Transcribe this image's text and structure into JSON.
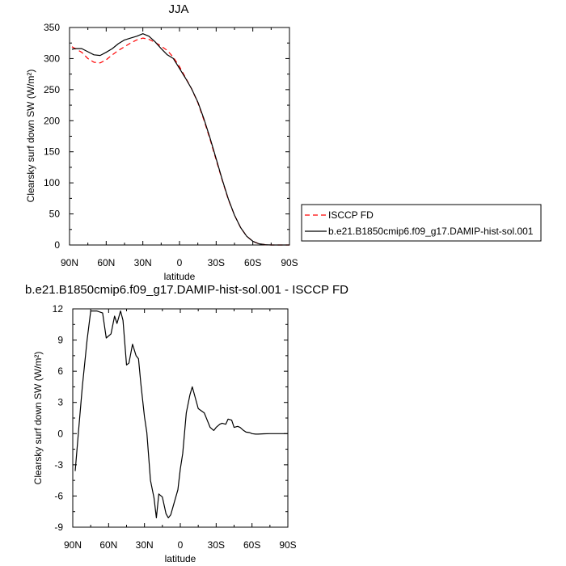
{
  "chart_data": [
    {
      "type": "line",
      "title": "JJA",
      "xlabel": "latitude",
      "ylabel": "Clearsky surf down SW (W/m²)",
      "x_ticks": [
        "90N",
        "60N",
        "30N",
        "0",
        "30S",
        "60S",
        "90S"
      ],
      "y_ticks": [
        "0",
        "50",
        "100",
        "150",
        "200",
        "250",
        "300",
        "350"
      ],
      "xlim": [
        90,
        -90
      ],
      "ylim": [
        0,
        350
      ],
      "grid": false,
      "legend_position": "right",
      "series": [
        {
          "name": "ISCCP FD",
          "color": "#ff0000",
          "dash": "dashed",
          "x": [
            88,
            80,
            75,
            70,
            65,
            60,
            55,
            50,
            45,
            40,
            35,
            30,
            25,
            20,
            15,
            10,
            5,
            0,
            -5,
            -10,
            -15,
            -20,
            -25,
            -30,
            -35,
            -40,
            -45,
            -50,
            -55,
            -60,
            -65,
            -70,
            -75,
            -80,
            -85,
            -90
          ],
          "y": [
            319,
            310,
            300,
            294,
            293,
            298,
            306,
            313,
            319,
            325,
            330,
            333,
            331,
            326,
            320,
            313,
            302,
            287,
            269,
            251,
            229,
            201,
            170,
            137,
            104,
            73,
            48,
            28,
            14,
            6,
            2,
            0.5,
            0,
            0,
            0,
            0
          ]
        },
        {
          "name": "b.e21.B1850cmip6.f09_g17.DAMIP-hist-sol.001",
          "color": "#000000",
          "dash": "solid",
          "x": [
            88,
            85,
            80,
            75,
            70,
            65,
            60,
            55,
            50,
            45,
            40,
            35,
            30,
            25,
            20,
            15,
            10,
            5,
            0,
            -5,
            -10,
            -15,
            -20,
            -25,
            -30,
            -35,
            -40,
            -45,
            -50,
            -55,
            -60,
            -65,
            -70,
            -75,
            -80,
            -85,
            -90
          ],
          "y": [
            315,
            316,
            316,
            311,
            306,
            305,
            310,
            316,
            324,
            330,
            333,
            336,
            340,
            336,
            327,
            316,
            306,
            300,
            284,
            268,
            251,
            230,
            203,
            172,
            139,
            105,
            74,
            48,
            28,
            14,
            6,
            2,
            0.5,
            0,
            0,
            0,
            0
          ]
        }
      ]
    },
    {
      "type": "line",
      "title": "b.e21.B1850cmip6.f09_g17.DAMIP-hist-sol.001 - ISCCP FD",
      "xlabel": "latitude",
      "ylabel": "Clearsky surf down SW (W/m²)",
      "x_ticks": [
        "90N",
        "60N",
        "30N",
        "0",
        "30S",
        "60S",
        "90S"
      ],
      "y_ticks": [
        "12",
        "9",
        "6",
        "3",
        "0",
        "-3",
        "-6",
        "-9"
      ],
      "xlim": [
        90,
        -90
      ],
      "ylim": [
        -9,
        12
      ],
      "grid": false,
      "series": [
        {
          "color": "#000000",
          "dash": "solid",
          "x": [
            88,
            85,
            82,
            78,
            75,
            70,
            65,
            62,
            58,
            55,
            53,
            50,
            48,
            45,
            43,
            40,
            37,
            35,
            33,
            30,
            28,
            25,
            22,
            20,
            18,
            15,
            12,
            10,
            8,
            5,
            2,
            0,
            -2,
            -5,
            -8,
            -10,
            -15,
            -20,
            -25,
            -28,
            -30,
            -33,
            -35,
            -38,
            -40,
            -43,
            -45,
            -48,
            -50,
            -53,
            -55,
            -58,
            -60,
            -63,
            -65,
            -70,
            -75,
            -80,
            -85,
            -90
          ],
          "y": [
            -3.6,
            0.5,
            4.5,
            9.0,
            11.8,
            11.8,
            11.6,
            9.2,
            9.6,
            11.3,
            10.6,
            11.8,
            10.9,
            6.6,
            6.8,
            8.6,
            7.5,
            7.2,
            4.8,
            1.6,
            0.1,
            -4.5,
            -6.2,
            -8.1,
            -5.8,
            -6.1,
            -7.7,
            -8.1,
            -7.8,
            -6.6,
            -5.4,
            -3.4,
            -1.9,
            2.0,
            3.7,
            4.5,
            2.4,
            2.0,
            0.6,
            0.3,
            0.6,
            0.9,
            1.0,
            0.9,
            1.4,
            1.3,
            0.6,
            0.7,
            0.6,
            0.3,
            0.15,
            0.1,
            0.0,
            -0.05,
            -0.05,
            -0.02,
            0.0,
            0.0,
            0.0,
            0.0
          ]
        }
      ]
    }
  ]
}
